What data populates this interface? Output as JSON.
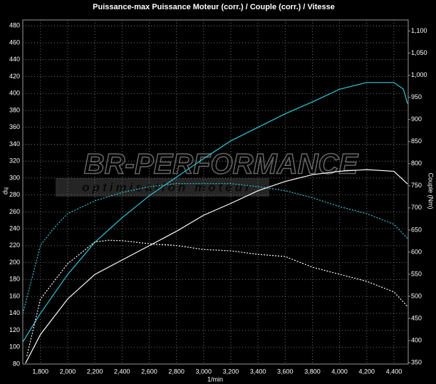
{
  "chart_data": {
    "type": "line",
    "title": "Puissance-max Puissance Moteur (corr.) / Couple (corr.) / Vitesse",
    "ylabel": "hp",
    "y2label": "Couple (Nm)",
    "xlabel": "1/min",
    "watermark": [
      "BR-PERFORMANCE",
      "optimisation moteur"
    ],
    "xlim": [
      1670,
      4505
    ],
    "ylim": [
      80,
      487
    ],
    "y2lim": [
      347,
      1125
    ],
    "grid": true,
    "xticks": [
      {
        "value": 1800,
        "label": "1,800"
      },
      {
        "value": 2000,
        "label": "2,000"
      },
      {
        "value": 2200,
        "label": "2,200"
      },
      {
        "value": 2400,
        "label": "2,400"
      },
      {
        "value": 2600,
        "label": "2,600"
      },
      {
        "value": 2800,
        "label": "2,800"
      },
      {
        "value": 3000,
        "label": "3,000"
      },
      {
        "value": 3200,
        "label": "3,200"
      },
      {
        "value": 3400,
        "label": "3,400"
      },
      {
        "value": 3600,
        "label": "3,600"
      },
      {
        "value": 3800,
        "label": "3,800"
      },
      {
        "value": 4000,
        "label": "4,000"
      },
      {
        "value": 4200,
        "label": "4,200"
      },
      {
        "value": 4400,
        "label": "4,400"
      }
    ],
    "yticks": [
      80,
      100,
      120,
      140,
      160,
      180,
      200,
      220,
      240,
      260,
      280,
      300,
      320,
      340,
      360,
      380,
      400,
      420,
      440,
      460,
      480
    ],
    "y2ticks": [
      350,
      400,
      450,
      500,
      550,
      600,
      650,
      700,
      750,
      800,
      850,
      900,
      950,
      {
        "value": 1000,
        "label": "1,000"
      },
      {
        "value": 1050,
        "label": "1,050"
      },
      {
        "value": 1100,
        "label": "1,100"
      }
    ],
    "series": [
      {
        "color": "#2fc8d8",
        "dash": false,
        "x": [
          1670,
          1800,
          2000,
          2200,
          2400,
          2600,
          2800,
          3000,
          3200,
          3400,
          3600,
          3800,
          4000,
          4200,
          4400,
          4470,
          4500
        ],
        "values": [
          106,
          140,
          186,
          224,
          253,
          279,
          301,
          323,
          344,
          360,
          376,
          390,
          405,
          413,
          413,
          405,
          388
        ]
      },
      {
        "color": "#ffffff",
        "dash": false,
        "x": [
          1690,
          1800,
          2000,
          2200,
          2400,
          2600,
          2800,
          3000,
          3200,
          3400,
          3600,
          3800,
          4000,
          4200,
          4400,
          4500
        ],
        "values": [
          81,
          115,
          157,
          186,
          203,
          220,
          237,
          256,
          270,
          285,
          296,
          304,
          308,
          310,
          308,
          293
        ]
      },
      {
        "color": "#2fc8d8",
        "dash": true,
        "axis": "y2",
        "x": [
          1670,
          1800,
          1900,
          2000,
          2200,
          2400,
          2600,
          2800,
          3000,
          3200,
          3400,
          3600,
          3800,
          4000,
          4200,
          4400,
          4500
        ],
        "values": [
          461,
          615,
          655,
          687,
          716,
          735,
          748,
          755,
          755,
          755,
          748,
          739,
          723,
          703,
          687,
          663,
          631
        ]
      },
      {
        "color": "#ffffff",
        "dash": true,
        "axis": "y2",
        "x": [
          1700,
          1800,
          2000,
          2200,
          2300,
          2400,
          2600,
          2800,
          3000,
          3200,
          3400,
          3600,
          3800,
          4000,
          4200,
          4400,
          4500
        ],
        "values": [
          365,
          494,
          574,
          623,
          627,
          626,
          619,
          615,
          606,
          603,
          595,
          590,
          566,
          550,
          534,
          510,
          477
        ]
      }
    ]
  }
}
